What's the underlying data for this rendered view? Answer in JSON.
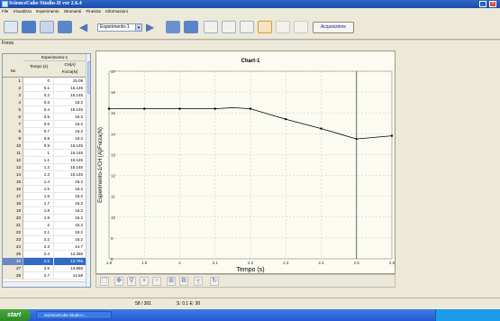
{
  "window": {
    "title": "ScienceCube Studio-II ver 2.6.4"
  },
  "menu": [
    "File",
    "Visualizza",
    "Esperimento",
    "Strumenti",
    "Finestra",
    "Informazioni"
  ],
  "toolbar": {
    "experiment_select": "Esperimento-1",
    "acquire_label": "Acquisizione"
  },
  "sensor_label": "Forza",
  "table": {
    "group_header": "Esperimento-1",
    "col_no": "No",
    "col_time": "Tempo (s)",
    "col_channel": "CH[A]",
    "col_force": "Forza(N)",
    "rows": [
      [
        "1",
        "0",
        "15.09"
      ],
      [
        "2",
        "0.1",
        "15.145"
      ],
      [
        "3",
        "0.2",
        "15.145"
      ],
      [
        "4",
        "0.3",
        "15.2"
      ],
      [
        "5",
        "0.4",
        "15.145"
      ],
      [
        "6",
        "0.5",
        "15.2"
      ],
      [
        "7",
        "0.6",
        "15.2"
      ],
      [
        "8",
        "0.7",
        "15.2"
      ],
      [
        "9",
        "0.8",
        "15.2"
      ],
      [
        "10",
        "0.9",
        "15.145"
      ],
      [
        "11",
        "1",
        "15.145"
      ],
      [
        "12",
        "1.1",
        "15.145"
      ],
      [
        "13",
        "1.2",
        "15.145"
      ],
      [
        "14",
        "1.3",
        "15.145"
      ],
      [
        "15",
        "1.4",
        "15.2"
      ],
      [
        "16",
        "1.5",
        "15.2"
      ],
      [
        "17",
        "1.6",
        "15.2"
      ],
      [
        "18",
        "1.7",
        "15.2"
      ],
      [
        "19",
        "1.8",
        "15.2"
      ],
      [
        "20",
        "1.9",
        "15.2"
      ],
      [
        "21",
        "2",
        "15.2"
      ],
      [
        "22",
        "2.1",
        "15.2"
      ],
      [
        "23",
        "2.2",
        "15.2"
      ],
      [
        "24",
        "2.3",
        "14.7"
      ],
      [
        "25",
        "2.4",
        "14.255"
      ],
      [
        "26",
        "2.5",
        "13.755"
      ],
      [
        "27",
        "2.6",
        "13.865"
      ],
      [
        "28",
        "2.7",
        "14.59"
      ]
    ],
    "selected_row": 25
  },
  "chart_data": {
    "type": "line",
    "title": "Chart-1",
    "xlabel": "Tempo (s)",
    "ylabel": "Esperimento-1/CH [A]/Forza(N)",
    "xlim": [
      1.8,
      2.6
    ],
    "ylim": [
      8,
      17
    ],
    "xticks": [
      "1.8",
      "1.9",
      "2",
      "2.1",
      "2.2",
      "2.3",
      "2.4",
      "2.5",
      "2.6"
    ],
    "yticks": [
      "8",
      "9",
      "10",
      "11",
      "12",
      "13",
      "14",
      "15",
      "16",
      "17"
    ],
    "cursor_x": 2.5,
    "series": [
      {
        "values_x": [
          1.8,
          1.9,
          2.0,
          2.1,
          2.15,
          2.2,
          2.3,
          2.4,
          2.5,
          2.6
        ],
        "values_y": [
          15.2,
          15.2,
          15.2,
          15.2,
          15.25,
          15.2,
          14.7,
          14.25,
          13.75,
          13.9
        ]
      }
    ],
    "markers_x": [
      1.8,
      1.9,
      2.0,
      2.1,
      2.2,
      2.3,
      2.4,
      2.5,
      2.6
    ],
    "markers_y": [
      15.2,
      15.2,
      15.2,
      15.2,
      15.2,
      14.7,
      14.25,
      13.75,
      13.9
    ]
  },
  "status": {
    "count": "58 / 301",
    "info": "S: 0.1  E: 30"
  },
  "taskbar": {
    "start_label": "start",
    "task_item": "ScienceCube Studio-I..."
  },
  "colors": {
    "title_bar": "#1c4ba8",
    "series": "#000000",
    "selection": "#316ac5"
  }
}
